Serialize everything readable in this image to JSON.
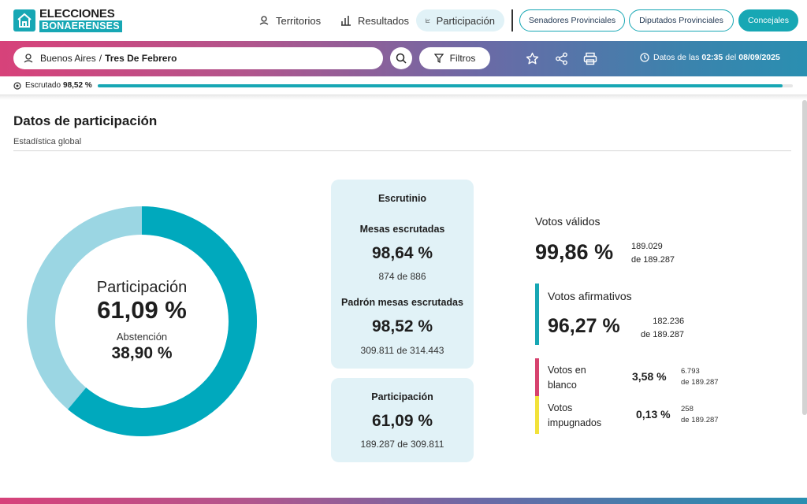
{
  "header": {
    "logo": {
      "line1": "ELECCIONES",
      "line2": "BONAERENSES",
      "icon": "house-icon"
    },
    "nav": [
      {
        "label": "Territorios",
        "icon": "map-pin-icon"
      },
      {
        "label": "Resultados",
        "icon": "bar-chart-icon"
      },
      {
        "label": "Participación",
        "icon": "line-chart-icon",
        "active": true
      }
    ],
    "pills": [
      {
        "label": "Senadores Provinciales"
      },
      {
        "label": "Diputados Provinciales"
      },
      {
        "label": "Concejales",
        "active": true
      }
    ]
  },
  "toolbar": {
    "location_region": "Buenos Aires",
    "location_separator": "/",
    "location_district": "Tres De Febrero",
    "filter_label": "Filtros",
    "date_prefix": "Datos de las",
    "date_time": "02:35",
    "date_mid": "del",
    "date_day": "08/09/2025"
  },
  "progress": {
    "label": "Escrutado",
    "value": "98,52 %",
    "fraction": 0.9852
  },
  "section": {
    "title": "Datos de participación",
    "subtitle": "Estadística global"
  },
  "donut": {
    "label": "Participación",
    "value": "61,09 %",
    "fraction": 0.6109,
    "abstencion_label": "Abstención",
    "abstencion_value": "38,90 %",
    "colors": {
      "participacion": "#00a9bd",
      "abstencion": "#9bd6e3"
    }
  },
  "escrutinio": {
    "title": "Escrutinio",
    "mesas_title": "Mesas escrutadas",
    "mesas_value": "98,64 %",
    "mesas_detail": "874 de 886",
    "padron_title": "Padrón mesas escrutadas",
    "padron_value": "98,52 %",
    "padron_detail": "309.811 de 314.443"
  },
  "participacion_card": {
    "title": "Participación",
    "value": "61,09 %",
    "detail": "189.287 de 309.811"
  },
  "votos": {
    "validos": {
      "label": "Votos válidos",
      "value": "99,86 %",
      "count": "189.029",
      "total": "de 189.287"
    },
    "afirmativos": {
      "label": "Votos afirmativos",
      "value": "96,27 %",
      "count": "182.236",
      "total": "de 189.287"
    },
    "blanco": {
      "label": "Votos en blanco",
      "value": "3,58 %",
      "count": "6.793",
      "total": "de 189.287"
    },
    "impugnados": {
      "label": "Votos impugnados",
      "value": "0,13 %",
      "count": "258",
      "total": "de 189.287"
    }
  }
}
